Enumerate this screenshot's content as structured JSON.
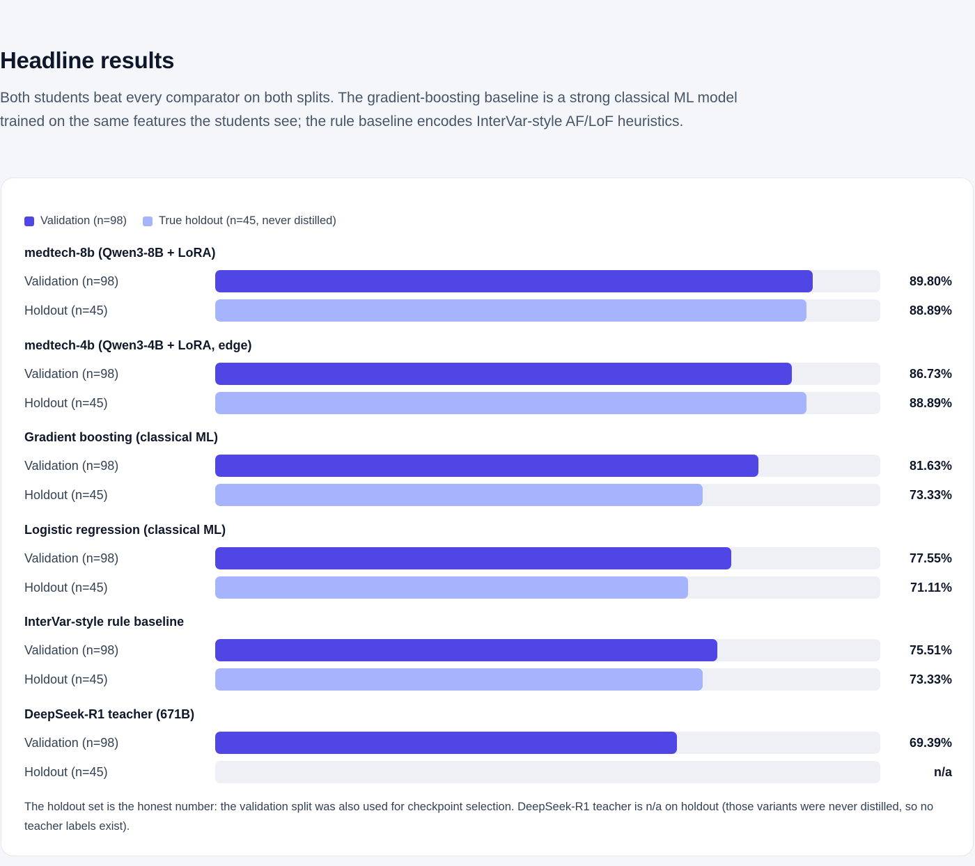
{
  "header": {
    "title": "Headline results",
    "description": "Both students beat every comparator on both splits. The gradient-boosting baseline is a strong classical ML model trained on the same features the students see; the rule baseline encodes InterVar-style AF/LoF heuristics."
  },
  "colors": {
    "validation": "#4f46e5",
    "holdout": "#a5b4fc",
    "track": "#eff0f5"
  },
  "chart_data": {
    "type": "bar",
    "orientation": "horizontal",
    "legend": {
      "placement": "top-left",
      "items": [
        "Validation (n=98)",
        "True holdout (n=45, never distilled)"
      ]
    },
    "xlim": [
      0,
      100
    ],
    "unit": "%",
    "groups": [
      {
        "name": "medtech-8b (Qwen3-8B + LoRA)",
        "rows": [
          {
            "label": "Validation (n=98)",
            "split": "validation",
            "value": 89.8,
            "display": "89.80%"
          },
          {
            "label": "Holdout (n=45)",
            "split": "holdout",
            "value": 88.89,
            "display": "88.89%"
          }
        ]
      },
      {
        "name": "medtech-4b (Qwen3-4B + LoRA, edge)",
        "rows": [
          {
            "label": "Validation (n=98)",
            "split": "validation",
            "value": 86.73,
            "display": "86.73%"
          },
          {
            "label": "Holdout (n=45)",
            "split": "holdout",
            "value": 88.89,
            "display": "88.89%"
          }
        ]
      },
      {
        "name": "Gradient boosting (classical ML)",
        "rows": [
          {
            "label": "Validation (n=98)",
            "split": "validation",
            "value": 81.63,
            "display": "81.63%"
          },
          {
            "label": "Holdout (n=45)",
            "split": "holdout",
            "value": 73.33,
            "display": "73.33%"
          }
        ]
      },
      {
        "name": "Logistic regression (classical ML)",
        "rows": [
          {
            "label": "Validation (n=98)",
            "split": "validation",
            "value": 77.55,
            "display": "77.55%"
          },
          {
            "label": "Holdout (n=45)",
            "split": "holdout",
            "value": 71.11,
            "display": "71.11%"
          }
        ]
      },
      {
        "name": "InterVar-style rule baseline",
        "rows": [
          {
            "label": "Validation (n=98)",
            "split": "validation",
            "value": 75.51,
            "display": "75.51%"
          },
          {
            "label": "Holdout (n=45)",
            "split": "holdout",
            "value": 73.33,
            "display": "73.33%"
          }
        ]
      },
      {
        "name": "DeepSeek-R1 teacher (671B)",
        "rows": [
          {
            "label": "Validation (n=98)",
            "split": "validation",
            "value": 69.39,
            "display": "69.39%"
          },
          {
            "label": "Holdout (n=45)",
            "split": "holdout",
            "value": null,
            "display": "n/a"
          }
        ]
      }
    ]
  },
  "footnote": "The holdout set is the honest number: the validation split was also used for checkpoint selection. DeepSeek-R1 teacher is n/a on holdout (those variants were never distilled, so no teacher labels exist)."
}
